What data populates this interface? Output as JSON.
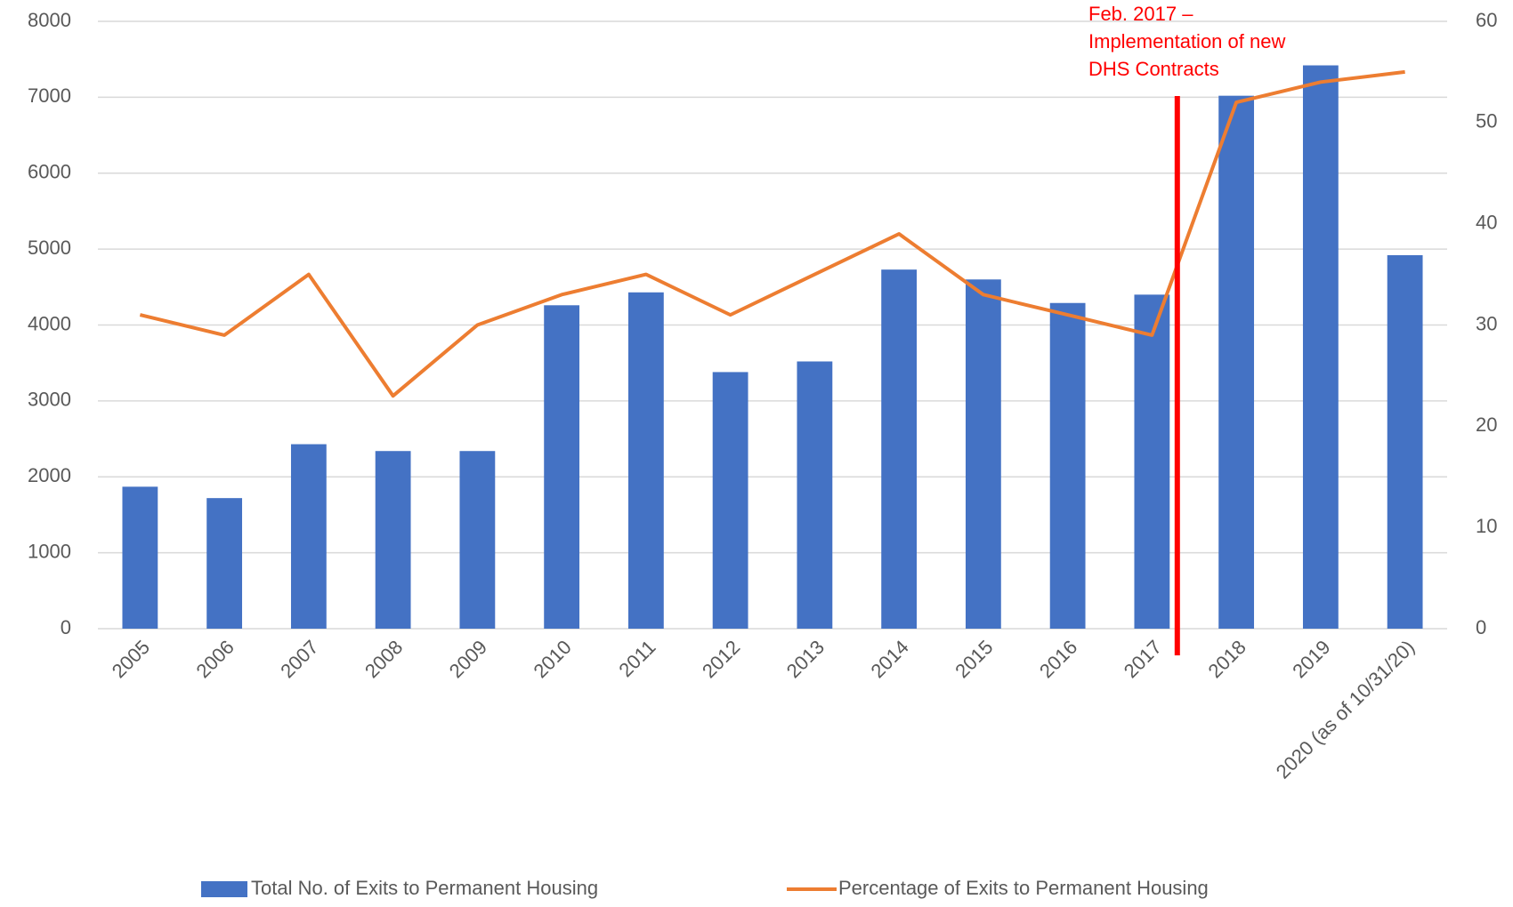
{
  "chart_data": {
    "type": "bar",
    "categories": [
      "2005",
      "2006",
      "2007",
      "2008",
      "2009",
      "2010",
      "2011",
      "2012",
      "2013",
      "2014",
      "2015",
      "2016",
      "2017",
      "2018",
      "2019",
      "2020 (as of 10/31/20)"
    ],
    "series": [
      {
        "name": "Total No. of Exits to Permanent Housing",
        "type": "bar",
        "color": "#4472c4",
        "values": [
          1870,
          1720,
          2430,
          2340,
          2340,
          4260,
          4430,
          3380,
          3520,
          4730,
          4600,
          4290,
          4400,
          7020,
          7420,
          4920
        ]
      },
      {
        "name": "Percentage of Exits to Permanent Housing",
        "type": "line",
        "axis": "y2",
        "color": "#ed7d31",
        "values": [
          31,
          29,
          35,
          23,
          30,
          33,
          35,
          31,
          35,
          39,
          33,
          31,
          29,
          52,
          54,
          55
        ]
      }
    ],
    "ylim": [
      0,
      8000
    ],
    "yticks": [
      0,
      1000,
      2000,
      3000,
      4000,
      5000,
      6000,
      7000,
      8000
    ],
    "y2lim": [
      0,
      60
    ],
    "y2ticks": [
      0,
      10,
      20,
      30,
      40,
      50,
      60
    ],
    "grid": true,
    "legend": "bottom",
    "annotation": {
      "lines": [
        "Feb. 2017 –",
        "Implementation of new",
        "DHS Contracts"
      ],
      "color": "#ff0000"
    }
  }
}
